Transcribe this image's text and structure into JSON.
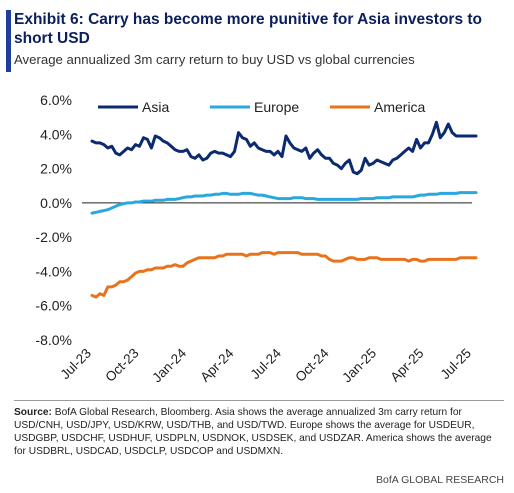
{
  "header": {
    "title": "Exhibit 6: Carry has become more punitive for Asia investors to short USD",
    "subtitle": "Average annualized 3m carry return to buy USD vs global currencies"
  },
  "colors": {
    "accent": "#1f3f9c",
    "asia": "#0b2a6f",
    "europe": "#29a8e0",
    "america": "#e8731c",
    "zero_line": "#222222"
  },
  "chart_data": {
    "type": "line",
    "title": "",
    "xlabel": "",
    "ylabel": "",
    "ylim": [
      -8.0,
      6.0
    ],
    "y_ticks": [
      "6.0%",
      "4.0%",
      "2.0%",
      "0.0%",
      "-2.0%",
      "-4.0%",
      "-6.0%",
      "-8.0%"
    ],
    "x_ticks": [
      "Jul-23",
      "Oct-23",
      "Jan-24",
      "Apr-24",
      "Jul-24",
      "Oct-24",
      "Jan-25",
      "Apr-25",
      "Jul-25"
    ],
    "grid": false,
    "legend_position": "top",
    "x": [
      0,
      0.25,
      0.5,
      0.75,
      1,
      1.25,
      1.5,
      1.75,
      2,
      2.25,
      2.5,
      2.75,
      3,
      3.25,
      3.5,
      3.75,
      4,
      4.25,
      4.5,
      4.75,
      5,
      5.25,
      5.5,
      5.75,
      6,
      6.25,
      6.5,
      6.75,
      7,
      7.25,
      7.5,
      7.75,
      8,
      8.25,
      8.5,
      8.75,
      9,
      9.25,
      9.5,
      9.75,
      10,
      10.25,
      10.5,
      10.75,
      11,
      11.25,
      11.5,
      11.75,
      12,
      12.25,
      12.5,
      12.75,
      13,
      13.25,
      13.5,
      13.75,
      14,
      14.25,
      14.5,
      14.75,
      15,
      15.25,
      15.5,
      15.75,
      16,
      16.25,
      16.5,
      16.75,
      17,
      17.25,
      17.5,
      17.75,
      18,
      18.25,
      18.5,
      18.75,
      19,
      19.25,
      19.5,
      19.75,
      20,
      20.25,
      20.5,
      20.75,
      21,
      21.25,
      21.5,
      21.75,
      22,
      22.25,
      22.5,
      22.75,
      23,
      23.25,
      23.5,
      23.75,
      24,
      24.25
    ],
    "x_note": "months since Jul-23",
    "series": [
      {
        "name": "Asia",
        "values": [
          3.6,
          3.5,
          3.5,
          3.4,
          3.2,
          3.3,
          2.9,
          2.8,
          3.0,
          3.2,
          3.1,
          3.4,
          3.3,
          3.8,
          3.7,
          3.2,
          3.9,
          3.8,
          3.6,
          3.5,
          3.3,
          3.1,
          3.0,
          3.0,
          3.1,
          2.7,
          2.6,
          2.8,
          2.5,
          2.6,
          2.9,
          3.0,
          2.9,
          2.9,
          2.8,
          2.7,
          3.0,
          4.1,
          3.8,
          3.7,
          3.3,
          3.5,
          3.2,
          3.1,
          3.0,
          3.0,
          2.8,
          3.0,
          2.7,
          3.9,
          3.5,
          3.2,
          3.1,
          3.0,
          3.2,
          2.6,
          2.9,
          3.1,
          2.8,
          2.6,
          2.6,
          2.3,
          2.2,
          2.0,
          2.3,
          2.5,
          1.8,
          1.7,
          1.9,
          2.6,
          2.2,
          2.3,
          2.5,
          2.4,
          2.3,
          2.2,
          2.5,
          2.6,
          2.8,
          3.0,
          3.2,
          3.0,
          3.7,
          3.2,
          3.5,
          3.5,
          4.0,
          4.7,
          3.8,
          4.1,
          4.6,
          4.1,
          3.9,
          3.9,
          3.9,
          3.9,
          3.9,
          3.9
        ]
      },
      {
        "name": "Europe",
        "values": [
          -0.6,
          -0.55,
          -0.5,
          -0.45,
          -0.4,
          -0.3,
          -0.2,
          -0.1,
          -0.05,
          0.0,
          0.0,
          0.05,
          0.05,
          0.1,
          0.1,
          0.1,
          0.15,
          0.15,
          0.15,
          0.2,
          0.2,
          0.2,
          0.25,
          0.3,
          0.35,
          0.35,
          0.4,
          0.4,
          0.4,
          0.45,
          0.45,
          0.5,
          0.5,
          0.55,
          0.55,
          0.5,
          0.5,
          0.5,
          0.55,
          0.55,
          0.55,
          0.5,
          0.45,
          0.45,
          0.4,
          0.35,
          0.3,
          0.25,
          0.25,
          0.25,
          0.25,
          0.3,
          0.3,
          0.3,
          0.25,
          0.25,
          0.25,
          0.2,
          0.2,
          0.2,
          0.2,
          0.2,
          0.2,
          0.2,
          0.2,
          0.2,
          0.2,
          0.2,
          0.25,
          0.25,
          0.25,
          0.25,
          0.3,
          0.3,
          0.3,
          0.3,
          0.35,
          0.35,
          0.35,
          0.35,
          0.35,
          0.35,
          0.4,
          0.45,
          0.45,
          0.5,
          0.5,
          0.5,
          0.55,
          0.55,
          0.55,
          0.55,
          0.55,
          0.6,
          0.6,
          0.6,
          0.6,
          0.6
        ]
      },
      {
        "name": "America",
        "values": [
          -5.4,
          -5.5,
          -5.3,
          -5.4,
          -4.9,
          -4.9,
          -4.8,
          -4.6,
          -4.6,
          -4.5,
          -4.3,
          -4.1,
          -4.0,
          -4.0,
          -3.9,
          -3.9,
          -3.8,
          -3.8,
          -3.8,
          -3.7,
          -3.7,
          -3.6,
          -3.7,
          -3.7,
          -3.5,
          -3.4,
          -3.3,
          -3.2,
          -3.2,
          -3.2,
          -3.2,
          -3.2,
          -3.1,
          -3.1,
          -3.0,
          -3.0,
          -3.0,
          -3.0,
          -3.0,
          -3.1,
          -3.0,
          -3.0,
          -3.0,
          -2.9,
          -2.9,
          -2.9,
          -3.0,
          -2.9,
          -2.9,
          -2.9,
          -2.9,
          -2.9,
          -2.9,
          -3.0,
          -3.0,
          -3.0,
          -3.0,
          -3.0,
          -3.1,
          -3.1,
          -3.3,
          -3.4,
          -3.4,
          -3.4,
          -3.3,
          -3.2,
          -3.2,
          -3.3,
          -3.3,
          -3.3,
          -3.2,
          -3.2,
          -3.2,
          -3.3,
          -3.3,
          -3.3,
          -3.3,
          -3.3,
          -3.3,
          -3.3,
          -3.4,
          -3.3,
          -3.3,
          -3.4,
          -3.4,
          -3.3,
          -3.3,
          -3.3,
          -3.3,
          -3.3,
          -3.3,
          -3.3,
          -3.3,
          -3.2,
          -3.2,
          -3.2,
          -3.2,
          -3.2
        ]
      }
    ]
  },
  "footer": {
    "source_label": "Source:",
    "source_text": " BofA Global Research, Bloomberg. Asia shows the average annualized 3m carry return for USD/CNH, USD/JPY, USD/KRW, USD/THB, and USD/TWD. Europe shows the average for USDEUR, USDGBP, USDCHF, USDHUF, USDPLN, USDNOK, USDSEK, and USDZAR. America shows the average for USDBRL, USDCAD, USDCLP, USDCOP and USDMXN.",
    "brand": "BofA GLOBAL RESEARCH"
  }
}
